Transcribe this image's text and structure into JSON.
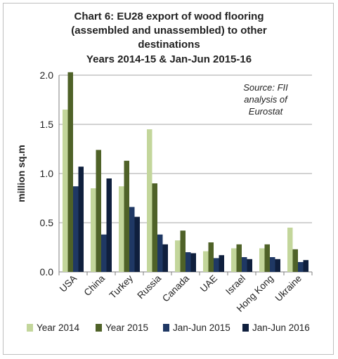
{
  "chart_data": {
    "type": "bar",
    "title_lines": [
      "Chart 6: EU28 export of wood flooring",
      "(assembled and unassembled) to other",
      "destinations",
      "Years 2014-15 & Jan-Jun 2015-16"
    ],
    "ylabel": "million sq.m",
    "ylim": [
      0,
      2.0
    ],
    "yticks": [
      "0.0",
      "0.5",
      "1.0",
      "1.5",
      "2.0"
    ],
    "annotation_lines": [
      "Source: FII",
      "analysis of",
      "Eurostat"
    ],
    "categories": [
      "USA",
      "China",
      "Turkey",
      "Russia",
      "Canada",
      "UAE",
      "Israel",
      "Hong Kong",
      "Ukraine"
    ],
    "series": [
      {
        "name": "Year 2014",
        "color": "#c3d69b",
        "values": [
          1.65,
          0.85,
          0.87,
          1.45,
          0.32,
          0.21,
          0.24,
          0.24,
          0.45
        ]
      },
      {
        "name": "Year 2015",
        "color": "#4f6228",
        "values": [
          2.03,
          1.24,
          1.13,
          0.9,
          0.42,
          0.3,
          0.28,
          0.28,
          0.23
        ]
      },
      {
        "name": "Jan-Jun 2015",
        "color": "#1f3864",
        "values": [
          0.87,
          0.38,
          0.66,
          0.38,
          0.2,
          0.14,
          0.15,
          0.15,
          0.1
        ]
      },
      {
        "name": "Jan-Jun 2016",
        "color": "#0f1f3d",
        "values": [
          1.07,
          0.95,
          0.56,
          0.28,
          0.19,
          0.17,
          0.13,
          0.13,
          0.12
        ]
      }
    ],
    "grid": true,
    "legend_position": "bottom"
  }
}
